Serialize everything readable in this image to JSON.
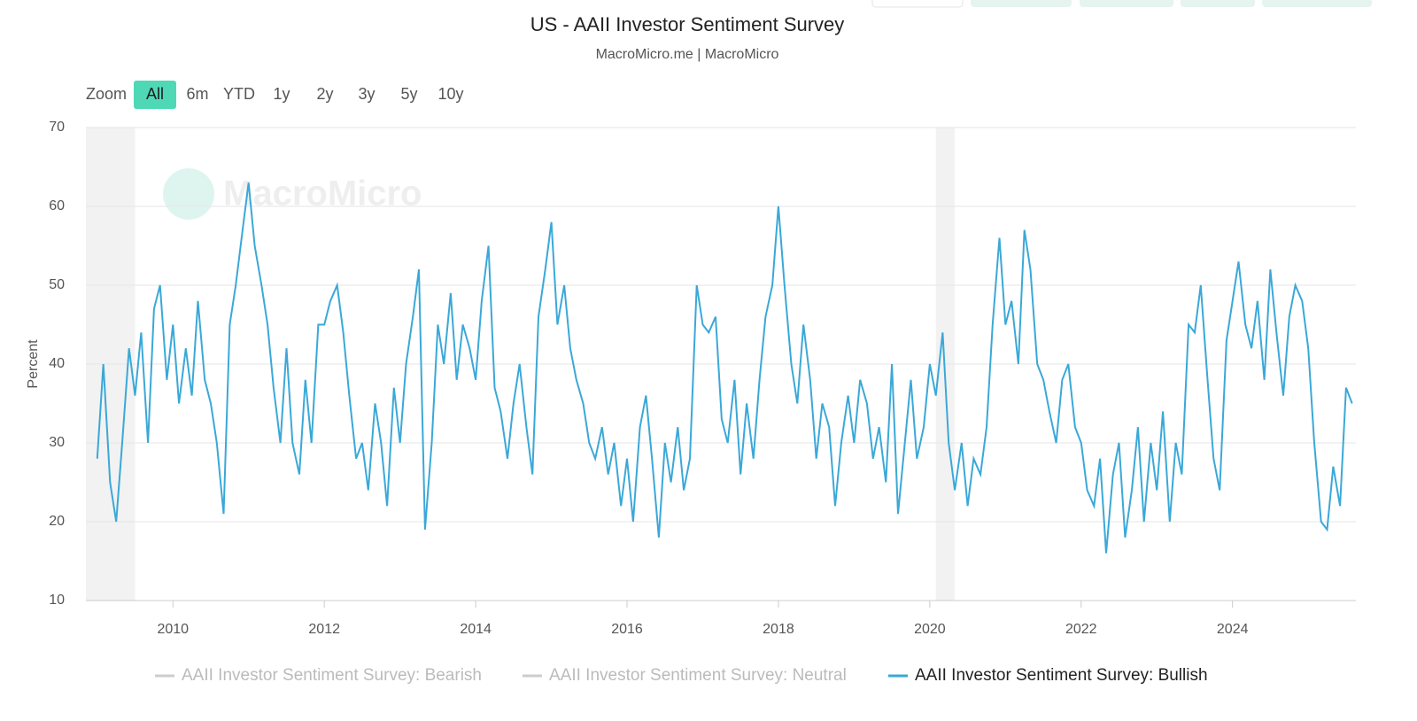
{
  "chart_data": {
    "type": "line",
    "title": "US - AAII Investor Sentiment Survey",
    "subtitle": "MacroMicro.me | MacroMicro",
    "watermark": "MacroMicro",
    "zoom_label": "Zoom",
    "zoom_buttons": [
      "All",
      "6m",
      "YTD",
      "1y",
      "2y",
      "3y",
      "5y",
      "10y"
    ],
    "zoom_active": 0,
    "ylabel": "Percent",
    "xlim": [
      2008.85,
      2025.63
    ],
    "ylim": [
      10,
      70
    ],
    "xticks": [
      2010,
      2012,
      2014,
      2016,
      2018,
      2020,
      2022,
      2024
    ],
    "yticks": [
      10,
      20,
      30,
      40,
      50,
      60,
      70
    ],
    "grid": true,
    "shaded_ranges": [
      [
        2008.85,
        2009.5
      ],
      [
        2020.08,
        2020.33
      ]
    ],
    "x": [
      2009.0,
      2009.08,
      2009.17,
      2009.25,
      2009.33,
      2009.42,
      2009.5,
      2009.58,
      2009.67,
      2009.75,
      2009.83,
      2009.92,
      2010.0,
      2010.08,
      2010.17,
      2010.25,
      2010.33,
      2010.42,
      2010.5,
      2010.58,
      2010.67,
      2010.75,
      2010.83,
      2010.92,
      2011.0,
      2011.08,
      2011.17,
      2011.25,
      2011.33,
      2011.42,
      2011.5,
      2011.58,
      2011.67,
      2011.75,
      2011.83,
      2011.92,
      2012.0,
      2012.08,
      2012.17,
      2012.25,
      2012.33,
      2012.42,
      2012.5,
      2012.58,
      2012.67,
      2012.75,
      2012.83,
      2012.92,
      2013.0,
      2013.08,
      2013.17,
      2013.25,
      2013.33,
      2013.42,
      2013.5,
      2013.58,
      2013.67,
      2013.75,
      2013.83,
      2013.92,
      2014.0,
      2014.08,
      2014.17,
      2014.25,
      2014.33,
      2014.42,
      2014.5,
      2014.58,
      2014.67,
      2014.75,
      2014.83,
      2014.92,
      2015.0,
      2015.08,
      2015.17,
      2015.25,
      2015.33,
      2015.42,
      2015.5,
      2015.58,
      2015.67,
      2015.75,
      2015.83,
      2015.92,
      2016.0,
      2016.08,
      2016.17,
      2016.25,
      2016.33,
      2016.42,
      2016.5,
      2016.58,
      2016.67,
      2016.75,
      2016.83,
      2016.92,
      2017.0,
      2017.08,
      2017.17,
      2017.25,
      2017.33,
      2017.42,
      2017.5,
      2017.58,
      2017.67,
      2017.75,
      2017.83,
      2017.92,
      2018.0,
      2018.08,
      2018.17,
      2018.25,
      2018.33,
      2018.42,
      2018.5,
      2018.58,
      2018.67,
      2018.75,
      2018.83,
      2018.92,
      2019.0,
      2019.08,
      2019.17,
      2019.25,
      2019.33,
      2019.42,
      2019.5,
      2019.58,
      2019.67,
      2019.75,
      2019.83,
      2019.92,
      2020.0,
      2020.08,
      2020.17,
      2020.25,
      2020.33,
      2020.42,
      2020.5,
      2020.58,
      2020.67,
      2020.75,
      2020.83,
      2020.92,
      2021.0,
      2021.08,
      2021.17,
      2021.25,
      2021.33,
      2021.42,
      2021.5,
      2021.58,
      2021.67,
      2021.75,
      2021.83,
      2021.92,
      2022.0,
      2022.08,
      2022.17,
      2022.25,
      2022.33,
      2022.42,
      2022.5,
      2022.58,
      2022.67,
      2022.75,
      2022.83,
      2022.92,
      2023.0,
      2023.08,
      2023.17,
      2023.25,
      2023.33,
      2023.42,
      2023.5,
      2023.58,
      2023.67,
      2023.75,
      2023.83,
      2023.92,
      2024.0,
      2024.08,
      2024.17,
      2024.25,
      2024.33,
      2024.42,
      2024.5,
      2024.58,
      2024.67,
      2024.75,
      2024.83,
      2024.92,
      2025.0,
      2025.08,
      2025.17,
      2025.25,
      2025.33,
      2025.42,
      2025.5,
      2025.58
    ],
    "series": [
      {
        "name": "AAII Investor Sentiment Survey: Bullish",
        "color": "#3aa8d8",
        "values": [
          28,
          40,
          25,
          20,
          30,
          42,
          36,
          44,
          30,
          47,
          50,
          38,
          45,
          35,
          42,
          36,
          48,
          38,
          35,
          30,
          21,
          45,
          50,
          57,
          63,
          55,
          50,
          45,
          37,
          30,
          42,
          30,
          26,
          38,
          30,
          45,
          45,
          48,
          50,
          44,
          36,
          28,
          30,
          24,
          35,
          30,
          22,
          37,
          30,
          40,
          46,
          52,
          19,
          30,
          45,
          40,
          49,
          38,
          45,
          42,
          38,
          48,
          55,
          37,
          34,
          28,
          35,
          40,
          32,
          26,
          46,
          52,
          58,
          45,
          50,
          42,
          38,
          35,
          30,
          28,
          32,
          26,
          30,
          22,
          28,
          20,
          32,
          36,
          28,
          18,
          30,
          25,
          32,
          24,
          28,
          50,
          45,
          44,
          46,
          33,
          30,
          38,
          26,
          35,
          28,
          38,
          46,
          50,
          60,
          50,
          40,
          35,
          45,
          38,
          28,
          35,
          32,
          22,
          30,
          36,
          30,
          38,
          35,
          28,
          32,
          25,
          40,
          21,
          30,
          38,
          28,
          32,
          40,
          36,
          44,
          30,
          24,
          30,
          22,
          28,
          26,
          32,
          45,
          56,
          45,
          48,
          40,
          57,
          52,
          40,
          38,
          34,
          30,
          38,
          40,
          32,
          30,
          24,
          22,
          28,
          16,
          26,
          30,
          18,
          24,
          32,
          20,
          30,
          24,
          34,
          20,
          30,
          26,
          45,
          44,
          50,
          38,
          28,
          24,
          43,
          48,
          53,
          45,
          42,
          48,
          38,
          52,
          44,
          36,
          46,
          50,
          48,
          42,
          30,
          20,
          19,
          27,
          22,
          37,
          35
        ]
      }
    ],
    "hidden_series": [
      {
        "name": "AAII Investor Sentiment Survey: Bearish",
        "color": "#cccccc"
      },
      {
        "name": "AAII Investor Sentiment Survey: Neutral",
        "color": "#cccccc"
      }
    ]
  }
}
